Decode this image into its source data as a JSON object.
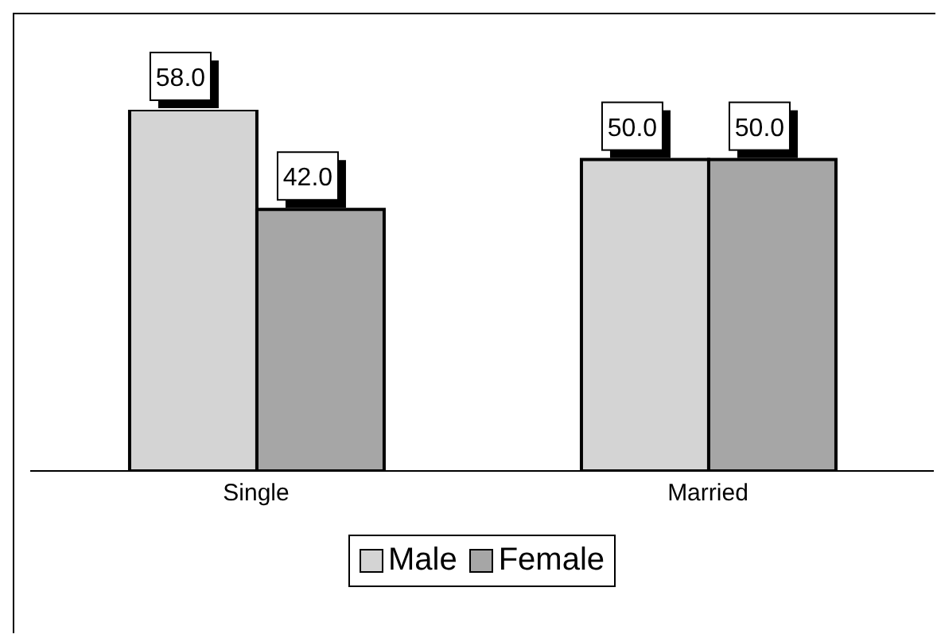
{
  "chart_data": {
    "type": "bar",
    "categories": [
      "Single",
      "Married"
    ],
    "series": [
      {
        "name": "Male",
        "color": "#d4d4d4",
        "values": [
          58.0,
          50.0
        ],
        "value_labels": [
          "58.0",
          "50.0"
        ]
      },
      {
        "name": "Female",
        "color": "#a6a6a6",
        "values": [
          42.0,
          50.0
        ],
        "value_labels": [
          "42.0",
          "50.0"
        ]
      }
    ],
    "legend": "bottom"
  }
}
